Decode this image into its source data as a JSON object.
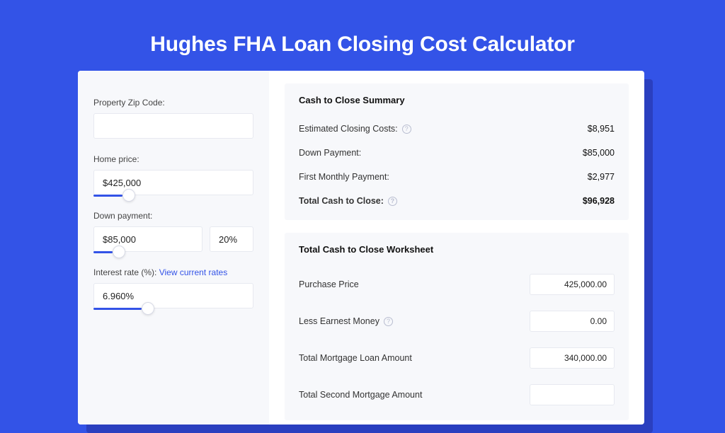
{
  "colors": {
    "primary": "#3353e7",
    "shadow": "#2a3fbf",
    "panel_bg": "#f7f8fb",
    "border": "#e7e9f0"
  },
  "page_title": "Hughes FHA Loan Closing Cost Calculator",
  "form": {
    "zip_label": "Property Zip Code:",
    "zip_value": "",
    "home_price_label": "Home price:",
    "home_price_value": "$425,000",
    "home_price_slider_pct": 18,
    "down_payment_label": "Down payment:",
    "down_payment_value": "$85,000",
    "down_payment_pct": "20%",
    "down_payment_slider_pct": 12,
    "interest_label": "Interest rate (%):",
    "interest_link": "View current rates",
    "interest_value": "6.960%",
    "interest_slider_pct": 30
  },
  "summary": {
    "title": "Cash to Close Summary",
    "rows": [
      {
        "label": "Estimated Closing Costs:",
        "help": true,
        "value": "$8,951",
        "bold": false
      },
      {
        "label": "Down Payment:",
        "help": false,
        "value": "$85,000",
        "bold": false
      },
      {
        "label": "First Monthly Payment:",
        "help": false,
        "value": "$2,977",
        "bold": false
      },
      {
        "label": "Total Cash to Close:",
        "help": true,
        "value": "$96,928",
        "bold": true
      }
    ]
  },
  "worksheet": {
    "title": "Total Cash to Close Worksheet",
    "rows": [
      {
        "label": "Purchase Price",
        "help": false,
        "value": "425,000.00"
      },
      {
        "label": "Less Earnest Money",
        "help": true,
        "value": "0.00"
      },
      {
        "label": "Total Mortgage Loan Amount",
        "help": false,
        "value": "340,000.00"
      },
      {
        "label": "Total Second Mortgage Amount",
        "help": false,
        "value": ""
      }
    ]
  }
}
